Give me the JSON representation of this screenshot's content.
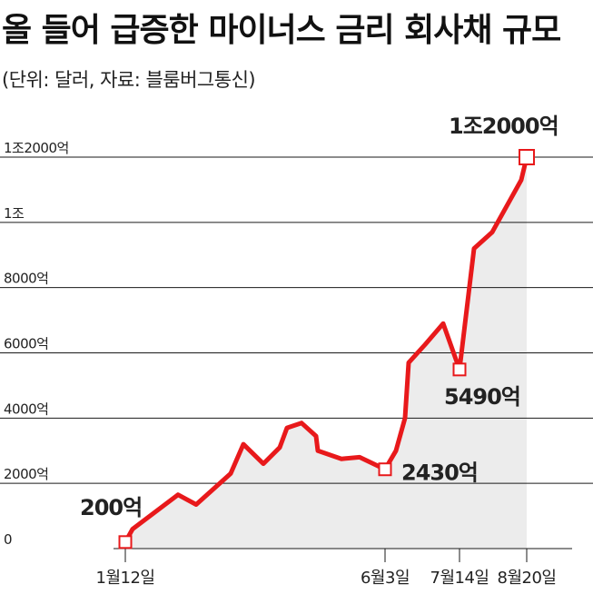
{
  "title": "올 들어 급증한 마이너스 금리 회사채 규모",
  "subtitle": "(단위: 달러, 자료: 블룸버그통신)",
  "colors": {
    "line": "#e8191b",
    "area": "#ececec",
    "grid": "#1a1a1a",
    "text": "#222222"
  },
  "chart_data": {
    "type": "area",
    "title": "올 들어 급증한 마이너스 금리 회사채 규모",
    "subtitle": "(단위: 달러, 자료: 블룸버그통신)",
    "xlabel": "",
    "ylabel": "",
    "ylim": [
      0,
      12000
    ],
    "yticks": [
      {
        "value": 0,
        "label": "0"
      },
      {
        "value": 2000,
        "label": "2000억"
      },
      {
        "value": 4000,
        "label": "4000억"
      },
      {
        "value": 6000,
        "label": "6000억"
      },
      {
        "value": 8000,
        "label": "8000억"
      },
      {
        "value": 10000,
        "label": "1조"
      },
      {
        "value": 12000,
        "label": "1조2000억"
      }
    ],
    "xticks": [
      {
        "date": "2020-01-12",
        "label": "1월12일"
      },
      {
        "date": "2020-06-03",
        "label": "6월3일"
      },
      {
        "date": "2020-07-14",
        "label": "7월14일"
      },
      {
        "date": "2020-08-20",
        "label": "8월20일"
      }
    ],
    "grid": true,
    "series": [
      {
        "values": [
          {
            "x": "2020-01-12",
            "y": 200
          },
          {
            "x": "2020-01-16",
            "y": 600
          },
          {
            "x": "2020-02-10",
            "y": 1650
          },
          {
            "x": "2020-02-20",
            "y": 1350
          },
          {
            "x": "2020-03-10",
            "y": 2300
          },
          {
            "x": "2020-03-17",
            "y": 3200
          },
          {
            "x": "2020-03-28",
            "y": 2600
          },
          {
            "x": "2020-04-06",
            "y": 3100
          },
          {
            "x": "2020-04-10",
            "y": 3700
          },
          {
            "x": "2020-04-18",
            "y": 3850
          },
          {
            "x": "2020-04-26",
            "y": 3450
          },
          {
            "x": "2020-04-27",
            "y": 3000
          },
          {
            "x": "2020-05-10",
            "y": 2750
          },
          {
            "x": "2020-05-20",
            "y": 2800
          },
          {
            "x": "2020-06-03",
            "y": 2430
          },
          {
            "x": "2020-06-09",
            "y": 3000
          },
          {
            "x": "2020-06-14",
            "y": 4000
          },
          {
            "x": "2020-06-16",
            "y": 5700
          },
          {
            "x": "2020-06-25",
            "y": 6250
          },
          {
            "x": "2020-07-05",
            "y": 6900
          },
          {
            "x": "2020-07-14",
            "y": 5490
          },
          {
            "x": "2020-07-22",
            "y": 9200
          },
          {
            "x": "2020-08-01",
            "y": 9700
          },
          {
            "x": "2020-08-11",
            "y": 10700
          },
          {
            "x": "2020-08-17",
            "y": 11300
          },
          {
            "x": "2020-08-20",
            "y": 12000
          }
        ]
      }
    ],
    "annotations": [
      {
        "x": "2020-01-12",
        "y": 200,
        "text": "200억"
      },
      {
        "x": "2020-06-03",
        "y": 2430,
        "text": "2430억"
      },
      {
        "x": "2020-07-14",
        "y": 5490,
        "text": "5490억"
      },
      {
        "x": "2020-08-20",
        "y": 12000,
        "text": "1조2000억"
      }
    ]
  }
}
